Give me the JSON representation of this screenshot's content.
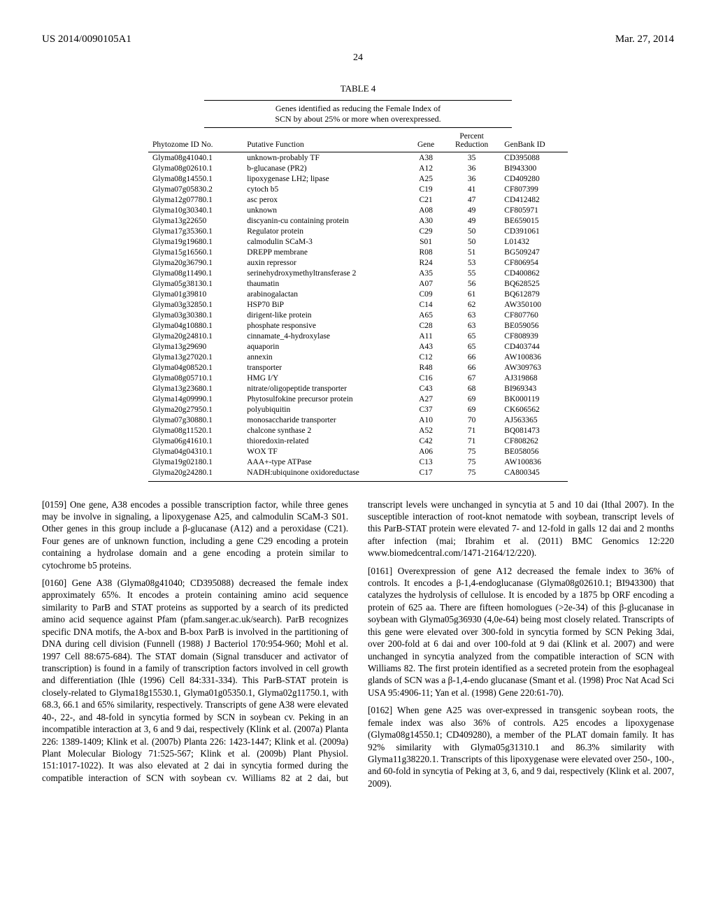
{
  "header": {
    "left": "US 2014/0090105A1",
    "right": "Mar. 27, 2014"
  },
  "page_number": "24",
  "table": {
    "label": "TABLE 4",
    "subtitle_line1": "Genes identified as reducing the Female Index of",
    "subtitle_line2": "SCN by about 25% or more when overexpressed.",
    "columns": {
      "phytozome": "Phytozome ID No.",
      "function": "Putative Function",
      "gene": "Gene",
      "pct_top": "Percent",
      "pct_bot": "Reduction",
      "genbank": "GenBank ID"
    },
    "rows": [
      {
        "id": "Glyma08g41040.1",
        "fn": "unknown-probably TF",
        "gene": "A38",
        "pct": "35",
        "gb": "CD395088"
      },
      {
        "id": "Glyma08g02610.1",
        "fn": "b-glucanase (PR2)",
        "gene": "A12",
        "pct": "36",
        "gb": "BI943300"
      },
      {
        "id": "Glyma08g14550.1",
        "fn": "lipoxygenase LH2; lipase",
        "gene": "A25",
        "pct": "36",
        "gb": "CD409280"
      },
      {
        "id": "Glyma07g05830.2",
        "fn": "cytoch b5",
        "gene": "C19",
        "pct": "41",
        "gb": "CF807399"
      },
      {
        "id": "Glyma12g07780.1",
        "fn": "asc perox",
        "gene": "C21",
        "pct": "47",
        "gb": "CD412482"
      },
      {
        "id": "Glyma10g30340.1",
        "fn": "unknown",
        "gene": "A08",
        "pct": "49",
        "gb": "CF805971"
      },
      {
        "id": "Glyma13g22650",
        "fn": "discyanin-cu containing protein",
        "gene": "A30",
        "pct": "49",
        "gb": "BE659015"
      },
      {
        "id": "Glyma17g35360.1",
        "fn": "Regulator protein",
        "gene": "C29",
        "pct": "50",
        "gb": "CD391061"
      },
      {
        "id": "Glyma19g19680.1",
        "fn": "calmodulin SCaM-3",
        "gene": "S01",
        "pct": "50",
        "gb": "L01432"
      },
      {
        "id": "Glyma15g16560.1",
        "fn": "DREPP membrane",
        "gene": "R08",
        "pct": "51",
        "gb": "BG509247"
      },
      {
        "id": "Glyma20g36790.1",
        "fn": "auxin repressor",
        "gene": "R24",
        "pct": "53",
        "gb": "CF806954"
      },
      {
        "id": "Glyma08g11490.1",
        "fn": "serinehydroxymethyltransferase 2",
        "gene": "A35",
        "pct": "55",
        "gb": "CD400862"
      },
      {
        "id": "Glyma05g38130.1",
        "fn": "thaumatin",
        "gene": "A07",
        "pct": "56",
        "gb": "BQ628525"
      },
      {
        "id": "Glyma01g39810",
        "fn": "arabinogalactan",
        "gene": "C09",
        "pct": "61",
        "gb": "BQ612879"
      },
      {
        "id": "Glyma03g32850.1",
        "fn": "HSP70 BiP",
        "gene": "C14",
        "pct": "62",
        "gb": "AW350100"
      },
      {
        "id": "Glyma03g30380.1",
        "fn": "dirigent-like protein",
        "gene": "A65",
        "pct": "63",
        "gb": "CF807760"
      },
      {
        "id": "Glyma04g10880.1",
        "fn": "phosphate responsive",
        "gene": "C28",
        "pct": "63",
        "gb": "BE059056"
      },
      {
        "id": "Glyma20g24810.1",
        "fn": "cinnamate_4-hydroxylase",
        "gene": "A11",
        "pct": "65",
        "gb": "CF808939"
      },
      {
        "id": "Glyma13g29690",
        "fn": "aquaporin",
        "gene": "A43",
        "pct": "65",
        "gb": "CD403744"
      },
      {
        "id": "Glyma13g27020.1",
        "fn": "annexin",
        "gene": "C12",
        "pct": "66",
        "gb": "AW100836"
      },
      {
        "id": "Glyma04g08520.1",
        "fn": "transporter",
        "gene": "R48",
        "pct": "66",
        "gb": "AW309763"
      },
      {
        "id": "Glyma08g05710.1",
        "fn": "HMG I/Y",
        "gene": "C16",
        "pct": "67",
        "gb": "AJ319868"
      },
      {
        "id": "Glyma13g23680.1",
        "fn": "nitrate/oligopeptide transporter",
        "gene": "C43",
        "pct": "68",
        "gb": "BI969343"
      },
      {
        "id": "Glyma14g09990.1",
        "fn": "Phytosulfokine precursor protein",
        "gene": "A27",
        "pct": "69",
        "gb": "BK000119"
      },
      {
        "id": "Glyma20g27950.1",
        "fn": "polyubiquitin",
        "gene": "C37",
        "pct": "69",
        "gb": "CK606562"
      },
      {
        "id": "Glyma07g30880.1",
        "fn": "monosaccharide transporter",
        "gene": "A10",
        "pct": "70",
        "gb": "AJ563365"
      },
      {
        "id": "Glyma08g11520.1",
        "fn": "chalcone synthase 2",
        "gene": "A52",
        "pct": "71",
        "gb": "BQ081473"
      },
      {
        "id": "Glyma06g41610.1",
        "fn": "thioredoxin-related",
        "gene": "C42",
        "pct": "71",
        "gb": "CF808262"
      },
      {
        "id": "Glyma04g04310.1",
        "fn": "WOX TF",
        "gene": "A06",
        "pct": "75",
        "gb": "BE058056"
      },
      {
        "id": "Glyma19g02180.1",
        "fn": "AAA+-type ATPase",
        "gene": "C13",
        "pct": "75",
        "gb": "AW100836"
      },
      {
        "id": "Glyma20g24280.1",
        "fn": "NADH:ubiquinone oxidoreductase",
        "gene": "C17",
        "pct": "75",
        "gb": "CA800345"
      }
    ]
  },
  "paragraphs": {
    "p0159": "[0159]   One gene, A38 encodes a possible transcription factor, while three genes may be involve in signaling, a lipoxygenase A25, and calmodulin SCaM-3 S01. Other genes in this group include a β-glucanase (A12) and a peroxidase (C21). Four genes are of unknown function, including a gene C29 encoding a protein containing a hydrolase domain and a gene encoding a protein similar to cytochrome b5 proteins.",
    "p0160": "[0160]   Gene A38 (Glyma08g41040; CD395088) decreased the female index approximately 65%. It encodes a protein containing amino acid sequence similarity to ParB and STAT proteins as supported by a search of its predicted amino acid sequence against Pfam (pfam.sanger.ac.uk/search). ParB recognizes specific DNA motifs, the A-box and B-box ParB is involved in the partitioning of DNA during cell division (Funnell (1988) J Bacteriol 170:954-960; Mohl et al. 1997 Cell 88:675-684). The STAT domain (Signal transducer and activator of transcription) is found in a family of transcription factors involved in cell growth and differentiation (Ihle (1996) Cell 84:331-334). This ParB-STAT protein is closely-related to Glyma18g15530.1, Glyma01g05350.1, Glyma02g11750.1, with 68.3, 66.1 and 65% similarity, respectively. Transcripts of gene A38 were elevated 40-, 22-, and 48-fold in syncytia formed by SCN in soybean cv. Peking in an incompatible interaction at 3, 6 and 9 dai, respectively (Klink et al. (2007a) Planta 226: 1389-1409; Klink et al. (2007b) Planta 226: 1423-1447; Klink et al. (2009a) Plant Molecular Biology 71:525-567; Klink et al. (2009b) Plant Physiol. 151:1017-1022). It was also elevated at 2 dai in syncytia formed during the compatible interaction of SCN with soybean cv. Williams 82 at 2 dai, but transcript levels were unchanged in syncytia at 5 and 10 dai (Ithal 2007). In the susceptible interaction of root-knot nematode with soybean, transcript levels of this ParB-STAT protein were elevated 7- and 12-fold in galls 12 dai and 2 months after infection (mai; Ibrahim et al. (2011) BMC Genomics 12:220 www.biomedcentral.com/1471-2164/12/220).",
    "p0161": "[0161]   Overexpression of gene A12 decreased the female index to 36% of controls. It encodes a β-1,4-endoglucanase (Glyma08g02610.1; BI943300) that catalyzes the hydrolysis of cellulose. It is encoded by a 1875 bp ORF encoding a protein of 625 aa. There are fifteen homologues (>2e-34) of this β-glucanase in soybean with Glyma05g36930 (4,0e-64) being most closely related. Transcripts of this gene were elevated over 300-fold in syncytia formed by SCN Peking 3dai, over 200-fold at 6 dai and over 100-fold at 9 dai (Klink et al. 2007) and were unchanged in syncytia analyzed from the compatible interaction of SCN with Williams 82. The first protein identified as a secreted protein from the esophageal glands of SCN was a β-1,4-endo glucanase (Smant et al. (1998) Proc Nat Acad Sci USA 95:4906-11; Yan et al. (1998) Gene 220:61-70).",
    "p0162": "[0162]   When gene A25 was over-expressed in transgenic soybean roots, the female index was also 36% of controls. A25 encodes a lipoxygenase (Glyma08g14550.1; CD409280), a member of the PLAT domain family. It has 92% similarity with Glyma05g31310.1 and 86.3% similarity with Glyma11g38220.1. Transcripts of this lipoxygenase were elevated over 250-, 100-, and 60-fold in syncytia of Peking at 3, 6, and 9 dai, respectively (Klink et al. 2007, 2009)."
  }
}
